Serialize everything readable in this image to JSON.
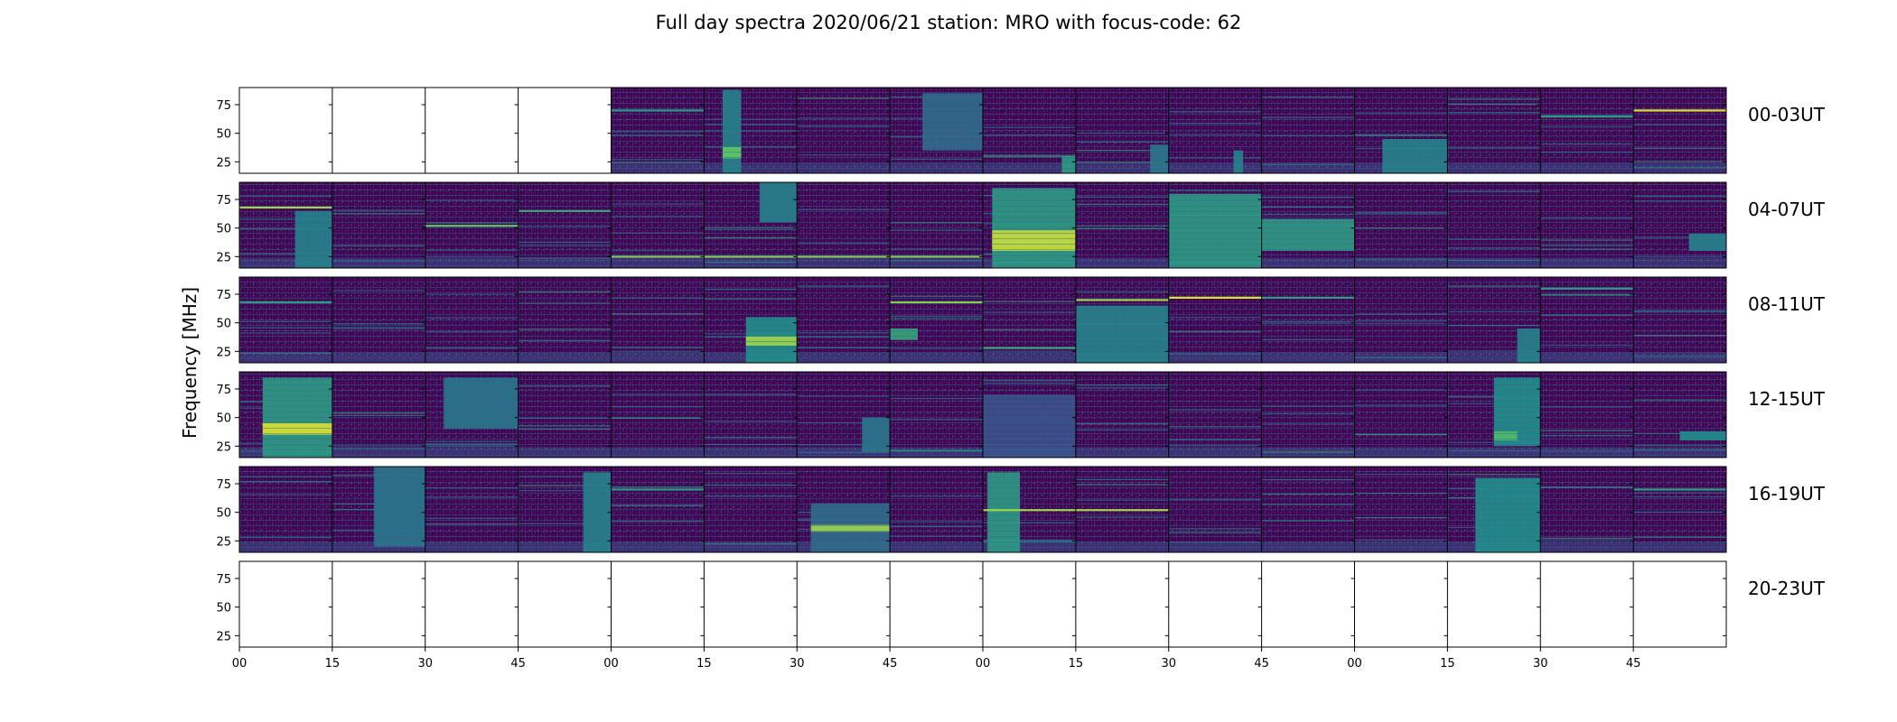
{
  "chart_data": {
    "type": "heatmap",
    "title": "Full day spectra 2020/06/21 station: MRO with focus-code: 62",
    "ylabel": "Frequency [MHz]",
    "ylim": [
      15,
      90
    ],
    "y_ticks": [
      "75",
      "50",
      "25"
    ],
    "y_tick_values": [
      75,
      50,
      25
    ],
    "x_ticks": [
      "00",
      "15",
      "30",
      "45",
      "00",
      "15",
      "30",
      "45",
      "00",
      "15",
      "30",
      "45",
      "00",
      "15",
      "30",
      "45"
    ],
    "grid": false,
    "colormap": "viridis",
    "colors": {
      "low": "#440154",
      "mid": "#21918c",
      "high": "#fde725"
    },
    "rows": [
      {
        "label": "00-03UT",
        "panels": [
          {
            "has_data": false
          },
          {
            "has_data": false
          },
          {
            "has_data": false
          },
          {
            "has_data": false
          },
          {
            "has_data": true,
            "lines": [
              [
                70,
                0.55
              ]
            ]
          },
          {
            "has_data": true,
            "bursts": [
              [
                0.2,
                0.4,
                15,
                88,
                0.45
              ],
              [
                0.2,
                0.4,
                28,
                38,
                0.75
              ]
            ]
          },
          {
            "has_data": true
          },
          {
            "has_data": true,
            "bursts": [
              [
                0.35,
                1.0,
                35,
                85,
                0.35
              ]
            ]
          },
          {
            "has_data": true,
            "bursts": [
              [
                0.85,
                1.0,
                15,
                30,
                0.55
              ]
            ]
          },
          {
            "has_data": true,
            "bursts": [
              [
                0.8,
                1.0,
                15,
                40,
                0.4
              ]
            ]
          },
          {
            "has_data": true,
            "bursts": [
              [
                0.7,
                0.8,
                15,
                35,
                0.45
              ]
            ]
          },
          {
            "has_data": true
          },
          {
            "has_data": true,
            "bursts": [
              [
                0.3,
                1.0,
                15,
                45,
                0.45
              ]
            ]
          },
          {
            "has_data": true
          },
          {
            "has_data": true,
            "lines": [
              [
                65,
                0.55
              ]
            ]
          },
          {
            "has_data": true,
            "lines": [
              [
                70,
                0.95
              ]
            ]
          }
        ]
      },
      {
        "label": "04-07UT",
        "panels": [
          {
            "has_data": true,
            "lines": [
              [
                68,
                0.85
              ]
            ],
            "bursts": [
              [
                0.6,
                1.0,
                15,
                65,
                0.45
              ]
            ]
          },
          {
            "has_data": true
          },
          {
            "has_data": true,
            "lines": [
              [
                52,
                0.75
              ]
            ]
          },
          {
            "has_data": true,
            "lines": [
              [
                65,
                0.6
              ]
            ]
          },
          {
            "has_data": true,
            "lines": [
              [
                25,
                0.8
              ]
            ]
          },
          {
            "has_data": true,
            "lines": [
              [
                25,
                0.8
              ]
            ],
            "bursts": [
              [
                0.6,
                1.0,
                55,
                90,
                0.45
              ]
            ]
          },
          {
            "has_data": true,
            "lines": [
              [
                25,
                0.8
              ]
            ]
          },
          {
            "has_data": true,
            "lines": [
              [
                25,
                0.8
              ]
            ]
          },
          {
            "has_data": true,
            "bursts": [
              [
                0.1,
                1.0,
                15,
                85,
                0.55
              ],
              [
                0.1,
                1.0,
                30,
                48,
                0.92
              ]
            ]
          },
          {
            "has_data": true
          },
          {
            "has_data": true,
            "bursts": [
              [
                0.0,
                1.0,
                15,
                80,
                0.55
              ]
            ]
          },
          {
            "has_data": true,
            "bursts": [
              [
                0.0,
                1.0,
                30,
                58,
                0.55
              ]
            ]
          },
          {
            "has_data": true
          },
          {
            "has_data": true
          },
          {
            "has_data": true
          },
          {
            "has_data": true,
            "bursts": [
              [
                0.6,
                1.0,
                30,
                45,
                0.45
              ]
            ]
          }
        ]
      },
      {
        "label": "08-11UT",
        "panels": [
          {
            "has_data": true,
            "lines": [
              [
                68,
                0.55
              ]
            ]
          },
          {
            "has_data": true
          },
          {
            "has_data": true
          },
          {
            "has_data": true
          },
          {
            "has_data": true
          },
          {
            "has_data": true,
            "bursts": [
              [
                0.45,
                1.0,
                15,
                55,
                0.5
              ],
              [
                0.45,
                1.0,
                30,
                38,
                0.85
              ]
            ]
          },
          {
            "has_data": true
          },
          {
            "has_data": true,
            "lines": [
              [
                68,
                0.8
              ]
            ],
            "bursts": [
              [
                0.0,
                0.3,
                35,
                45,
                0.6
              ]
            ]
          },
          {
            "has_data": true,
            "lines": [
              [
                28,
                0.6
              ]
            ]
          },
          {
            "has_data": true,
            "lines": [
              [
                70,
                0.85
              ]
            ],
            "bursts": [
              [
                0.0,
                1.0,
                15,
                65,
                0.45
              ]
            ]
          },
          {
            "has_data": true,
            "lines": [
              [
                72,
                0.95
              ]
            ]
          },
          {
            "has_data": true,
            "lines": [
              [
                72,
                0.55
              ]
            ]
          },
          {
            "has_data": true
          },
          {
            "has_data": true,
            "bursts": [
              [
                0.75,
                1.0,
                15,
                45,
                0.45
              ]
            ]
          },
          {
            "has_data": true,
            "lines": [
              [
                80,
                0.55
              ]
            ]
          },
          {
            "has_data": true
          }
        ]
      },
      {
        "label": "12-15UT",
        "panels": [
          {
            "has_data": true,
            "bursts": [
              [
                0.25,
                1.0,
                15,
                85,
                0.55
              ],
              [
                0.25,
                1.0,
                35,
                45,
                0.95
              ]
            ]
          },
          {
            "has_data": true
          },
          {
            "has_data": true,
            "bursts": [
              [
                0.2,
                1.0,
                40,
                85,
                0.4
              ]
            ]
          },
          {
            "has_data": true
          },
          {
            "has_data": true
          },
          {
            "has_data": true
          },
          {
            "has_data": true,
            "bursts": [
              [
                0.7,
                1.0,
                20,
                50,
                0.4
              ]
            ]
          },
          {
            "has_data": true
          },
          {
            "has_data": true,
            "bursts": [
              [
                0.0,
                1.0,
                15,
                70,
                0.25
              ]
            ]
          },
          {
            "has_data": true
          },
          {
            "has_data": true
          },
          {
            "has_data": true
          },
          {
            "has_data": true
          },
          {
            "has_data": true,
            "bursts": [
              [
                0.5,
                1.0,
                25,
                85,
                0.5
              ],
              [
                0.5,
                0.75,
                30,
                38,
                0.7
              ]
            ]
          },
          {
            "has_data": true
          },
          {
            "has_data": true,
            "bursts": [
              [
                0.5,
                1.0,
                30,
                38,
                0.5
              ]
            ]
          }
        ]
      },
      {
        "label": "16-19UT",
        "panels": [
          {
            "has_data": true
          },
          {
            "has_data": true,
            "bursts": [
              [
                0.45,
                1.0,
                20,
                90,
                0.4
              ]
            ]
          },
          {
            "has_data": true
          },
          {
            "has_data": true,
            "bursts": [
              [
                0.7,
                1.0,
                15,
                85,
                0.45
              ]
            ]
          },
          {
            "has_data": true,
            "lines": [
              [
                70,
                0.55
              ]
            ]
          },
          {
            "has_data": true
          },
          {
            "has_data": true,
            "bursts": [
              [
                0.15,
                1.0,
                15,
                58,
                0.35
              ],
              [
                0.15,
                1.0,
                33,
                39,
                0.85
              ]
            ]
          },
          {
            "has_data": true
          },
          {
            "has_data": true,
            "lines": [
              [
                52,
                0.85
              ]
            ],
            "bursts": [
              [
                0.05,
                0.4,
                15,
                85,
                0.55
              ]
            ]
          },
          {
            "has_data": true,
            "lines": [
              [
                52,
                0.85
              ]
            ]
          },
          {
            "has_data": true
          },
          {
            "has_data": true
          },
          {
            "has_data": true
          },
          {
            "has_data": true,
            "bursts": [
              [
                0.3,
                1.0,
                15,
                80,
                0.5
              ]
            ]
          },
          {
            "has_data": true
          },
          {
            "has_data": true,
            "lines": [
              [
                70,
                0.55
              ]
            ]
          }
        ]
      },
      {
        "label": "20-23UT",
        "panels": [
          {
            "has_data": false
          },
          {
            "has_data": false
          },
          {
            "has_data": false
          },
          {
            "has_data": false
          },
          {
            "has_data": false
          },
          {
            "has_data": false
          },
          {
            "has_data": false
          },
          {
            "has_data": false
          },
          {
            "has_data": false
          },
          {
            "has_data": false
          },
          {
            "has_data": false
          },
          {
            "has_data": false
          },
          {
            "has_data": false
          },
          {
            "has_data": false
          },
          {
            "has_data": false
          },
          {
            "has_data": false
          }
        ]
      }
    ]
  }
}
